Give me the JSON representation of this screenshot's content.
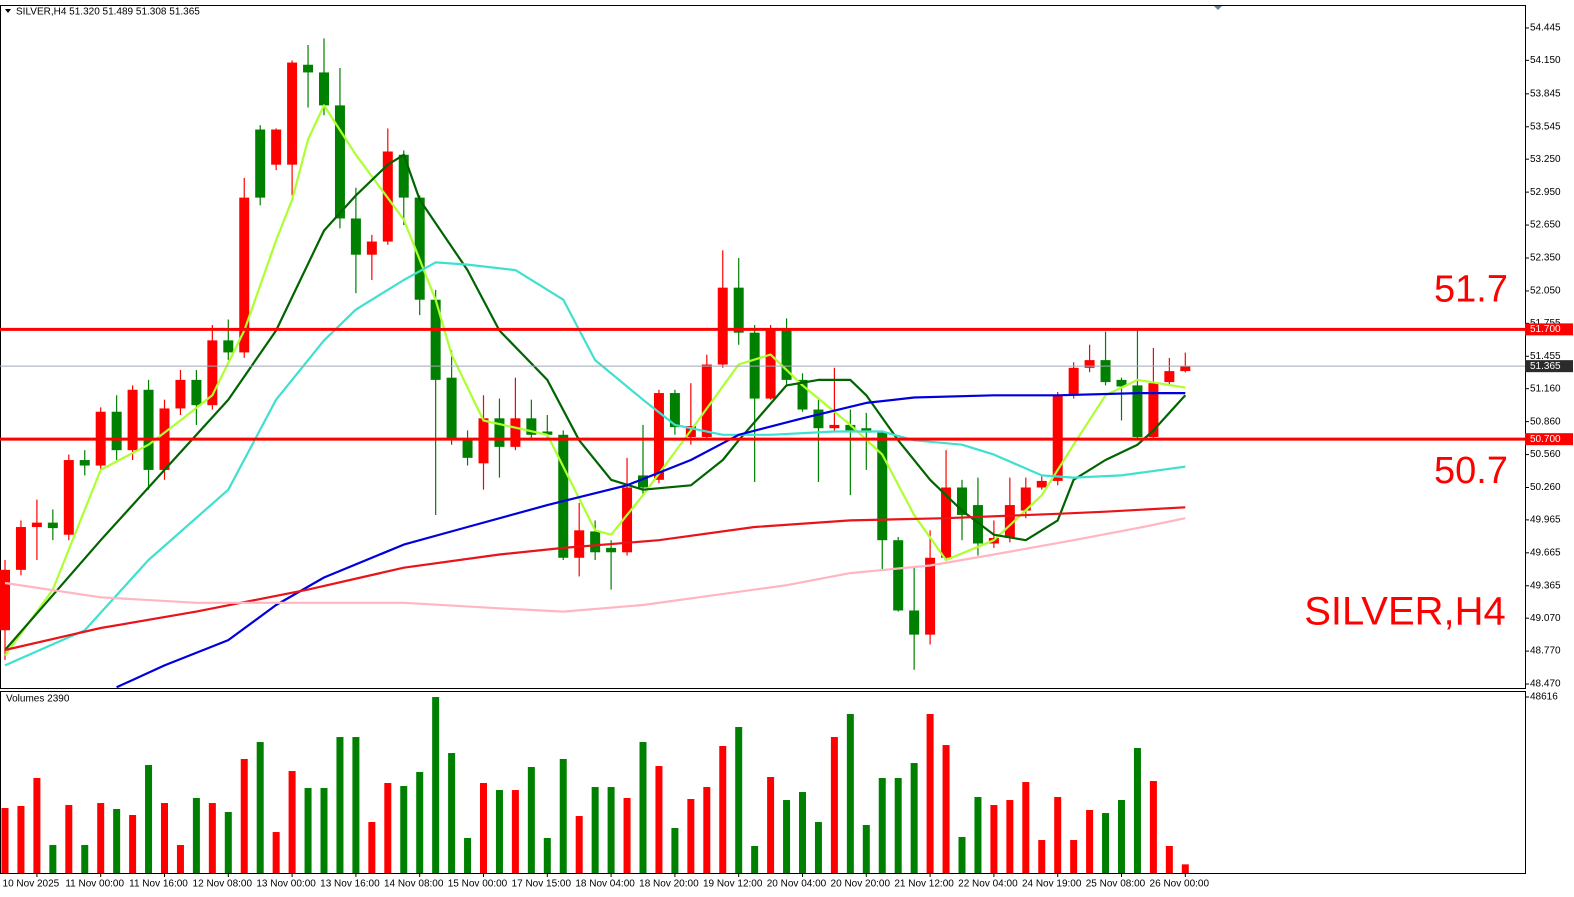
{
  "chart_data": {
    "type": "candlestick",
    "header": "SILVER,H4  51.320 51.489 51.308 51.365",
    "watermark": "SILVER,H4",
    "up_color": "#ff0000",
    "down_color": "#008000",
    "categories": [
      null,
      null,
      "10 Nov 2025",
      null,
      null,
      null,
      "11 Nov 00:00",
      null,
      null,
      null,
      "11 Nov 16:00",
      null,
      null,
      null,
      "12 Nov 08:00",
      null,
      null,
      null,
      "13 Nov 00:00",
      null,
      null,
      null,
      "13 Nov 16:00",
      null,
      null,
      null,
      "14 Nov 08:00",
      null,
      null,
      null,
      "15 Nov 00:00",
      null,
      null,
      null,
      "17 Nov 15:00",
      null,
      null,
      null,
      "18 Nov 04:00",
      null,
      null,
      null,
      "18 Nov 20:00",
      null,
      null,
      null,
      "19 Nov 12:00",
      null,
      null,
      null,
      "20 Nov 04:00",
      null,
      null,
      null,
      "20 Nov 20:00",
      null,
      null,
      null,
      "21 Nov 12:00",
      null,
      null,
      null,
      "22 Nov 04:00",
      null,
      null,
      null,
      "24 Nov 19:00",
      null,
      null,
      null,
      "25 Nov 08:00",
      null,
      null,
      null,
      "26 Nov 00:00"
    ],
    "open": [
      48.96,
      49.51,
      49.9,
      49.94,
      49.83,
      50.51,
      50.46,
      50.95,
      50.6,
      51.15,
      50.42,
      50.98,
      51.24,
      51.01,
      51.6,
      51.49,
      53.52,
      53.2,
      53.2,
      54.11,
      54.04,
      53.74,
      52.71,
      52.38,
      52.5,
      53.29,
      52.9,
      51.97,
      51.26,
      50.69,
      50.48,
      50.89,
      50.63,
      50.89,
      50.77,
      50.74,
      49.62,
      49.86,
      49.71,
      49.67,
      50.37,
      50.33,
      51.12,
      50.72,
      50.72,
      51.38,
      52.08,
      51.67,
      51.07,
      51.69,
      51.24,
      50.97,
      50.8,
      50.83,
      50.8,
      50.76,
      49.78,
      49.14,
      48.92,
      49.62,
      50.26,
      50.1,
      49.75,
      49.8,
      50.05,
      50.26,
      50.32,
      51.1,
      51.35,
      51.42,
      51.24,
      51.19,
      50.72,
      51.22,
      51.32
    ],
    "high": [
      49.6,
      49.96,
      50.15,
      50.06,
      50.56,
      50.6,
      50.99,
      51.1,
      51.19,
      51.24,
      51.06,
      51.33,
      51.33,
      51.74,
      51.79,
      53.08,
      53.56,
      53.53,
      54.15,
      54.29,
      54.35,
      54.08,
      52.99,
      52.56,
      53.53,
      53.33,
      52.92,
      52.06,
      51.51,
      50.78,
      51.1,
      51.07,
      51.26,
      51.06,
      50.92,
      50.78,
      50.12,
      49.96,
      49.78,
      50.53,
      50.83,
      51.15,
      51.15,
      51.21,
      51.47,
      52.42,
      52.35,
      51.74,
      51.74,
      51.8,
      51.3,
      51.06,
      51.35,
      50.97,
      50.94,
      50.78,
      49.81,
      49.53,
      49.87,
      50.6,
      50.33,
      50.35,
      49.96,
      50.35,
      50.35,
      50.36,
      51.13,
      51.4,
      51.56,
      51.68,
      51.26,
      51.69,
      51.53,
      51.44,
      51.489
    ],
    "low": [
      48.69,
      49.46,
      49.6,
      49.78,
      49.78,
      50.37,
      50.42,
      50.51,
      50.51,
      50.24,
      50.33,
      50.92,
      50.83,
      50.97,
      51.42,
      51.44,
      52.83,
      53.15,
      52.92,
      53.72,
      53.65,
      52.62,
      52.03,
      52.15,
      52.47,
      52.65,
      51.83,
      50.01,
      50.65,
      50.46,
      50.24,
      50.35,
      50.6,
      50.69,
      50.69,
      49.6,
      49.45,
      49.6,
      49.33,
      49.64,
      50.19,
      50.3,
      50.74,
      50.65,
      50.69,
      51.35,
      51.56,
      50.31,
      51.06,
      51.19,
      50.95,
      50.31,
      50.76,
      50.19,
      50.42,
      49.51,
      49.13,
      48.6,
      48.83,
      49.6,
      49.78,
      49.64,
      49.71,
      49.76,
      49.98,
      50.24,
      50.28,
      51.07,
      51.31,
      51.19,
      50.87,
      50.69,
      50.69,
      51.19,
      51.308
    ],
    "close": [
      49.51,
      49.9,
      49.94,
      49.89,
      50.51,
      50.46,
      50.95,
      50.6,
      51.15,
      50.42,
      50.98,
      51.24,
      51.01,
      51.6,
      51.49,
      52.9,
      52.9,
      53.52,
      54.13,
      54.04,
      53.74,
      52.71,
      52.38,
      52.5,
      53.32,
      52.9,
      51.97,
      51.24,
      50.69,
      50.53,
      50.89,
      50.63,
      50.89,
      50.74,
      50.74,
      49.62,
      49.87,
      49.67,
      49.67,
      50.26,
      50.26,
      51.12,
      50.81,
      50.82,
      51.38,
      52.08,
      51.67,
      51.07,
      51.69,
      51.24,
      50.97,
      50.8,
      50.83,
      50.78,
      50.76,
      49.78,
      49.14,
      48.92,
      49.62,
      50.26,
      50.01,
      49.75,
      49.8,
      50.1,
      50.26,
      50.32,
      51.1,
      51.35,
      51.42,
      51.22,
      51.18,
      50.72,
      51.21,
      51.32,
      51.365
    ],
    "ylim": [
      48.434,
      54.645
    ],
    "yticks": [
      {
        "value": 54.445,
        "label": "54.445"
      },
      {
        "value": 54.15,
        "label": "54.150"
      },
      {
        "value": 53.845,
        "label": "53.845"
      },
      {
        "value": 53.545,
        "label": "53.545"
      },
      {
        "value": 53.25,
        "label": "53.250"
      },
      {
        "value": 52.95,
        "label": "52.950"
      },
      {
        "value": 52.65,
        "label": "52.650"
      },
      {
        "value": 52.35,
        "label": "52.350"
      },
      {
        "value": 52.05,
        "label": "52.050"
      },
      {
        "value": 51.755,
        "label": "51.755"
      },
      {
        "value": 51.455,
        "label": "51.455"
      },
      {
        "value": 51.16,
        "label": "51.160"
      },
      {
        "value": 50.86,
        "label": "50.860"
      },
      {
        "value": 50.56,
        "label": "50.560"
      },
      {
        "value": 50.26,
        "label": "50.260"
      },
      {
        "value": 49.965,
        "label": "49.965"
      },
      {
        "value": 49.665,
        "label": "49.665"
      },
      {
        "value": 49.365,
        "label": "49.365"
      },
      {
        "value": 49.07,
        "label": "49.070"
      },
      {
        "value": 48.77,
        "label": "48.770"
      },
      {
        "value": 48.47,
        "label": "48.470"
      }
    ],
    "levels": [
      {
        "value": 51.7,
        "label": "51.7",
        "axis_label": "51.700",
        "color": "#ff0000"
      },
      {
        "value": 50.7,
        "label": "50.7",
        "axis_label": "50.700",
        "color": "#ff0000"
      }
    ],
    "current_price": {
      "value": 51.365,
      "label": "51.365",
      "color": "#a0a8b4"
    },
    "moving_averages": [
      {
        "color": "#adff2f",
        "x": [
          0,
          3,
          6,
          9,
          11,
          13,
          15,
          17,
          18,
          19,
          20,
          22,
          25,
          27,
          28,
          30,
          34,
          37,
          38,
          40,
          43,
          46,
          48,
          50,
          53,
          55,
          57,
          59,
          62,
          65,
          67,
          69,
          71,
          74
        ],
        "values": [
          48.73,
          49.33,
          50.42,
          50.65,
          50.87,
          51.1,
          51.69,
          52.51,
          52.88,
          53.43,
          53.74,
          53.29,
          52.7,
          51.97,
          51.47,
          50.87,
          50.74,
          49.87,
          49.83,
          50.19,
          50.78,
          51.38,
          51.47,
          51.19,
          50.83,
          50.56,
          50.01,
          49.6,
          49.78,
          50.19,
          50.65,
          51.1,
          51.24,
          51.17
        ]
      },
      {
        "color": "#006400",
        "x": [
          0,
          6,
          10,
          14,
          17,
          20,
          22,
          24,
          25,
          26,
          29,
          31,
          34,
          36,
          38,
          40,
          43,
          45,
          46,
          49,
          51,
          53,
          54,
          56,
          58,
          60,
          62,
          64,
          66,
          67,
          69,
          71,
          72,
          74
        ],
        "values": [
          48.78,
          49.78,
          50.42,
          51.06,
          51.69,
          52.6,
          52.92,
          53.2,
          53.29,
          52.88,
          52.24,
          51.69,
          51.24,
          50.69,
          50.33,
          50.24,
          50.28,
          50.51,
          50.69,
          51.19,
          51.24,
          51.24,
          51.1,
          50.69,
          50.33,
          50.05,
          49.83,
          49.78,
          49.96,
          50.33,
          50.51,
          50.65,
          50.78,
          51.1
        ]
      },
      {
        "color": "#40e0d0",
        "x": [
          0,
          5,
          9,
          14,
          17,
          20,
          22,
          25,
          27,
          29,
          32,
          35,
          37,
          40,
          42,
          45,
          48,
          52,
          55,
          57,
          60,
          62,
          65,
          67,
          70,
          74
        ],
        "values": [
          48.64,
          48.96,
          49.6,
          50.24,
          51.06,
          51.6,
          51.88,
          52.15,
          52.31,
          52.29,
          52.24,
          51.97,
          51.42,
          51.06,
          50.83,
          50.74,
          50.74,
          50.77,
          50.77,
          50.69,
          50.65,
          50.56,
          50.37,
          50.35,
          50.37,
          50.45
        ]
      },
      {
        "color": "#0000dd",
        "x": [
          7,
          10,
          14,
          17,
          20,
          25,
          29,
          34,
          39,
          43,
          46,
          50,
          54,
          57,
          62,
          66,
          71,
          74
        ],
        "values": [
          48.44,
          48.64,
          48.87,
          49.19,
          49.44,
          49.74,
          49.9,
          50.1,
          50.28,
          50.51,
          50.74,
          50.89,
          51.03,
          51.08,
          51.1,
          51.1,
          51.12,
          51.12
        ]
      },
      {
        "color": "#e8141a",
        "x": [
          0,
          6,
          12,
          19,
          25,
          31,
          35,
          41,
          47,
          53,
          59,
          66,
          69,
          74
        ],
        "values": [
          48.78,
          48.98,
          49.13,
          49.33,
          49.53,
          49.65,
          49.71,
          49.78,
          49.9,
          49.96,
          49.98,
          50.02,
          50.04,
          50.08
        ]
      },
      {
        "color": "#ffb6c1",
        "x": [
          0,
          6,
          12,
          19,
          25,
          31,
          35,
          40,
          44,
          49,
          53,
          58,
          62,
          67,
          71,
          74
        ],
        "values": [
          49.39,
          49.26,
          49.21,
          49.21,
          49.21,
          49.16,
          49.13,
          49.19,
          49.27,
          49.37,
          49.48,
          49.55,
          49.65,
          49.78,
          49.89,
          49.98
        ]
      }
    ],
    "volume": {
      "label": "Volumes 2390",
      "values": [
        17950,
        18510,
        26240,
        7730,
        18780,
        7730,
        19330,
        17680,
        16020,
        29830,
        19330,
        7730,
        20720,
        19330,
        16850,
        31490,
        36180,
        11320,
        28170,
        23480,
        23480,
        37560,
        37560,
        14090,
        24860,
        24030,
        27900,
        48616,
        33140,
        9670,
        24860,
        22920,
        22920,
        29280,
        9670,
        31490,
        15740,
        23750,
        23750,
        20720,
        36180,
        29550,
        12430,
        20440,
        23750,
        35080,
        40330,
        7460,
        26520,
        20160,
        22370,
        14090,
        37560,
        43920,
        13260,
        26240,
        26240,
        30380,
        43920,
        35350,
        9940,
        20990,
        18780,
        20160,
        25130,
        9110,
        20990,
        9110,
        17400,
        16570,
        20160,
        34530,
        25410,
        7460,
        2390
      ],
      "ylim": [
        0,
        50000
      ],
      "yticks": [
        48616
      ]
    }
  }
}
